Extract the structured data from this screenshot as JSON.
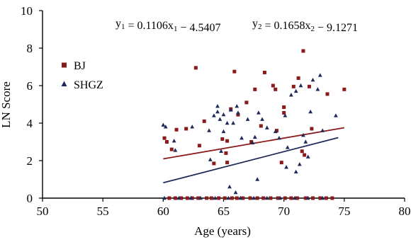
{
  "chart_data": {
    "type": "scatter",
    "xlabel": "Age (years)",
    "ylabel": "LN Score",
    "xlim": [
      50,
      80
    ],
    "ylim": [
      0,
      10
    ],
    "x_ticks": [
      50,
      55,
      60,
      65,
      70,
      75,
      80
    ],
    "y_ticks": [
      0,
      2,
      4,
      6,
      8,
      10
    ],
    "legend_position": "top-left",
    "annotations": [
      {
        "y": "y",
        "sub1": "1",
        "mid": " = 0.1106x",
        "sub2": "1",
        "rest": " − 4.5407"
      },
      {
        "y": "y",
        "sub1": "2",
        "mid": " = 0.1658x",
        "sub2": "2",
        "rest": " − 9.1271"
      }
    ],
    "series": [
      {
        "name": "BJ",
        "marker": "square",
        "color": "#8b1a1a",
        "fit": {
          "slope": 0.1106,
          "intercept": -4.5407,
          "x_range": [
            60,
            75
          ]
        },
        "points": [
          [
            60.1,
            3.2
          ],
          [
            60.3,
            3.0
          ],
          [
            60.7,
            2.6
          ],
          [
            61.1,
            3.65
          ],
          [
            61.9,
            3.7
          ],
          [
            62.7,
            6.95
          ],
          [
            63.0,
            2.8
          ],
          [
            63.4,
            4.1
          ],
          [
            64.2,
            1.85
          ],
          [
            64.9,
            3.15
          ],
          [
            65.2,
            2.4
          ],
          [
            65.3,
            3.05
          ],
          [
            65.3,
            1.9
          ],
          [
            65.6,
            4.75
          ],
          [
            65.9,
            6.75
          ],
          [
            66.2,
            4.45
          ],
          [
            66.9,
            5.1
          ],
          [
            67.3,
            3.0
          ],
          [
            67.6,
            5.8
          ],
          [
            68.1,
            3.85
          ],
          [
            68.4,
            6.7
          ],
          [
            69.1,
            6.0
          ],
          [
            69.3,
            5.8
          ],
          [
            69.4,
            3.6
          ],
          [
            69.8,
            1.9
          ],
          [
            70.0,
            4.85
          ],
          [
            70.0,
            4.55
          ],
          [
            70.8,
            5.95
          ],
          [
            71.2,
            6.4
          ],
          [
            71.5,
            2.5
          ],
          [
            71.6,
            7.85
          ],
          [
            71.7,
            2.3
          ],
          [
            72.1,
            5.95
          ],
          [
            72.3,
            3.7
          ],
          [
            73.6,
            5.55
          ],
          [
            75.0,
            5.8
          ],
          [
            60.5,
            0
          ],
          [
            61.0,
            0
          ],
          [
            61.5,
            0
          ],
          [
            62.0,
            0
          ],
          [
            62.4,
            0
          ],
          [
            62.9,
            0
          ],
          [
            63.6,
            0
          ],
          [
            64.0,
            0
          ],
          [
            64.6,
            0
          ],
          [
            65.1,
            0
          ],
          [
            65.7,
            0
          ],
          [
            66.1,
            0
          ],
          [
            66.6,
            0
          ],
          [
            67.2,
            0
          ],
          [
            67.8,
            0
          ],
          [
            68.3,
            0
          ],
          [
            68.9,
            0
          ],
          [
            69.5,
            0
          ],
          [
            70.1,
            0
          ],
          [
            70.6,
            0
          ],
          [
            71.1,
            0
          ],
          [
            71.8,
            0
          ],
          [
            72.4,
            0
          ],
          [
            73.0,
            0
          ],
          [
            73.5,
            0
          ],
          [
            74.0,
            0
          ]
        ]
      },
      {
        "name": "SHGZ",
        "marker": "triangle",
        "color": "#1f2a5a",
        "fit": {
          "slope": 0.1658,
          "intercept": -9.1271,
          "x_range": [
            60,
            74.5
          ]
        },
        "points": [
          [
            60.0,
            3.9
          ],
          [
            60.2,
            3.8
          ],
          [
            60.9,
            3.05
          ],
          [
            61.0,
            2.55
          ],
          [
            62.4,
            3.8
          ],
          [
            63.8,
            3.6
          ],
          [
            64.2,
            4.4
          ],
          [
            64.5,
            4.9
          ],
          [
            64.5,
            4.6
          ],
          [
            64.7,
            4.2
          ],
          [
            65.0,
            4.45
          ],
          [
            65.0,
            3.55
          ],
          [
            65.3,
            4.0
          ],
          [
            65.6,
            4.7
          ],
          [
            65.8,
            4.0
          ],
          [
            66.1,
            4.9
          ],
          [
            66.2,
            4.55
          ],
          [
            66.5,
            3.2
          ],
          [
            67.0,
            4.2
          ],
          [
            67.4,
            2.95
          ],
          [
            67.6,
            3.25
          ],
          [
            67.9,
            4.55
          ],
          [
            68.2,
            4.2
          ],
          [
            68.6,
            3.75
          ],
          [
            69.3,
            3.55
          ],
          [
            69.6,
            3.2
          ],
          [
            70.1,
            4.4
          ],
          [
            70.3,
            2.7
          ],
          [
            70.6,
            5.5
          ],
          [
            71.0,
            5.7
          ],
          [
            71.4,
            6.0
          ],
          [
            71.6,
            3.35
          ],
          [
            71.8,
            3.0
          ],
          [
            72.0,
            2.2
          ],
          [
            72.2,
            4.6
          ],
          [
            72.4,
            6.3
          ],
          [
            72.8,
            5.8
          ],
          [
            73.0,
            6.55
          ],
          [
            73.2,
            3.6
          ],
          [
            74.3,
            4.4
          ],
          [
            63.9,
            2.05
          ],
          [
            64.8,
            2.5
          ],
          [
            65.5,
            0.6
          ],
          [
            67.8,
            1.0
          ],
          [
            70.2,
            1.65
          ],
          [
            71.0,
            1.4
          ],
          [
            71.3,
            1.8
          ],
          [
            66.0,
            0.3
          ],
          [
            60.1,
            0
          ],
          [
            61.3,
            0
          ],
          [
            62.3,
            0
          ],
          [
            63.1,
            0
          ],
          [
            64.3,
            0
          ],
          [
            65.4,
            0
          ],
          [
            66.4,
            0
          ],
          [
            67.5,
            0
          ],
          [
            68.6,
            0
          ],
          [
            69.7,
            0
          ],
          [
            70.9,
            0
          ],
          [
            72.0,
            0
          ],
          [
            73.2,
            0
          ]
        ]
      }
    ]
  }
}
